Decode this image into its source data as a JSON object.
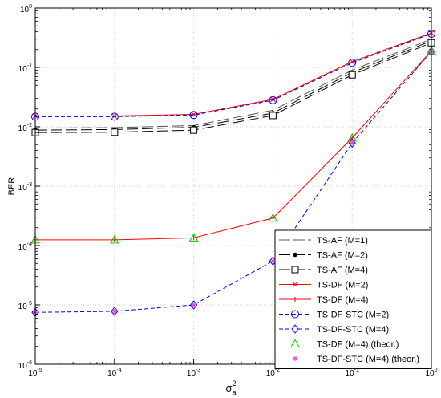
{
  "chart_data": {
    "type": "line",
    "x_scale": "log",
    "y_scale": "log",
    "xlim": [
      1e-05,
      1
    ],
    "ylim": [
      1e-06,
      1
    ],
    "grid": true,
    "legend_position": "bottom-right",
    "xlabel": "σ",
    "xlabel_sup": "2",
    "xlabel_sub": "a",
    "ylabel": "BER",
    "x_ticks": [
      {
        "value": 1e-05,
        "base": "10",
        "exp": "-5"
      },
      {
        "value": 0.0001,
        "base": "10",
        "exp": "-4"
      },
      {
        "value": 0.001,
        "base": "10",
        "exp": "-3"
      },
      {
        "value": 0.01,
        "base": "10",
        "exp": "-2"
      },
      {
        "value": 0.1,
        "base": "10",
        "exp": "-1"
      },
      {
        "value": 1,
        "base": "10",
        "exp": "0"
      }
    ],
    "y_ticks": [
      {
        "value": 1e-06,
        "base": "10",
        "exp": "-6"
      },
      {
        "value": 1e-05,
        "base": "10",
        "exp": "-5"
      },
      {
        "value": 0.0001,
        "base": "10",
        "exp": "-4"
      },
      {
        "value": 0.001,
        "base": "10",
        "exp": "-3"
      },
      {
        "value": 0.01,
        "base": "10",
        "exp": "-2"
      },
      {
        "value": 0.1,
        "base": "10",
        "exp": "-1"
      },
      {
        "value": 1,
        "base": "10",
        "exp": "0"
      }
    ],
    "x": [
      1e-05,
      0.0001,
      0.001,
      0.01,
      0.1,
      1
    ],
    "series": [
      {
        "name": "TS-AF (M=1)",
        "color": "#555555",
        "dash": "long",
        "marker": "none",
        "values": [
          0.0095,
          0.0097,
          0.0105,
          0.019,
          0.09,
          0.3
        ]
      },
      {
        "name": "TS-AF (M=2)",
        "color": "#000000",
        "dash": "long",
        "marker": "dot",
        "values": [
          0.0088,
          0.009,
          0.0098,
          0.017,
          0.082,
          0.28
        ]
      },
      {
        "name": "TS-AF (M=4)",
        "color": "#000000",
        "dash": "long",
        "marker": "square",
        "values": [
          0.008,
          0.0081,
          0.0088,
          0.0155,
          0.075,
          0.26
        ]
      },
      {
        "name": "TS-DF (M=2)",
        "color": "#ff0000",
        "dash": "solid",
        "marker": "x",
        "values": [
          0.0152,
          0.0152,
          0.0162,
          0.029,
          0.125,
          0.38
        ]
      },
      {
        "name": "TS-DF (M=4)",
        "color": "#ff0000",
        "dash": "solid",
        "marker": "plus",
        "values": [
          0.000125,
          0.000125,
          0.000135,
          0.00029,
          0.0065,
          0.19
        ]
      },
      {
        "name": "TS-DF-STC (M=2)",
        "color": "#0000ff",
        "dash": "dashed",
        "marker": "circle",
        "values": [
          0.0148,
          0.0148,
          0.0158,
          0.028,
          0.12,
          0.37
        ]
      },
      {
        "name": "TS-DF-STC (M=4)",
        "color": "#0000ff",
        "dash": "dashed",
        "marker": "diamond",
        "values": [
          7.5e-06,
          7.8e-06,
          1e-05,
          5.5e-05,
          0.0053,
          0.185
        ]
      },
      {
        "name": "TS-DF (M=4) (theor.)",
        "color": "#00cc00",
        "dash": "none",
        "marker": "triangle",
        "values": [
          0.000125,
          0.000125,
          0.000135,
          0.00029,
          0.0065,
          0.19
        ]
      },
      {
        "name": "TS-DF-STC (M=4) (theor.)",
        "color": "#ff33cc",
        "dash": "none",
        "marker": "star",
        "values": [
          7.5e-06,
          7.8e-06,
          1e-05,
          5.5e-05,
          0.0053,
          0.185
        ]
      }
    ]
  }
}
